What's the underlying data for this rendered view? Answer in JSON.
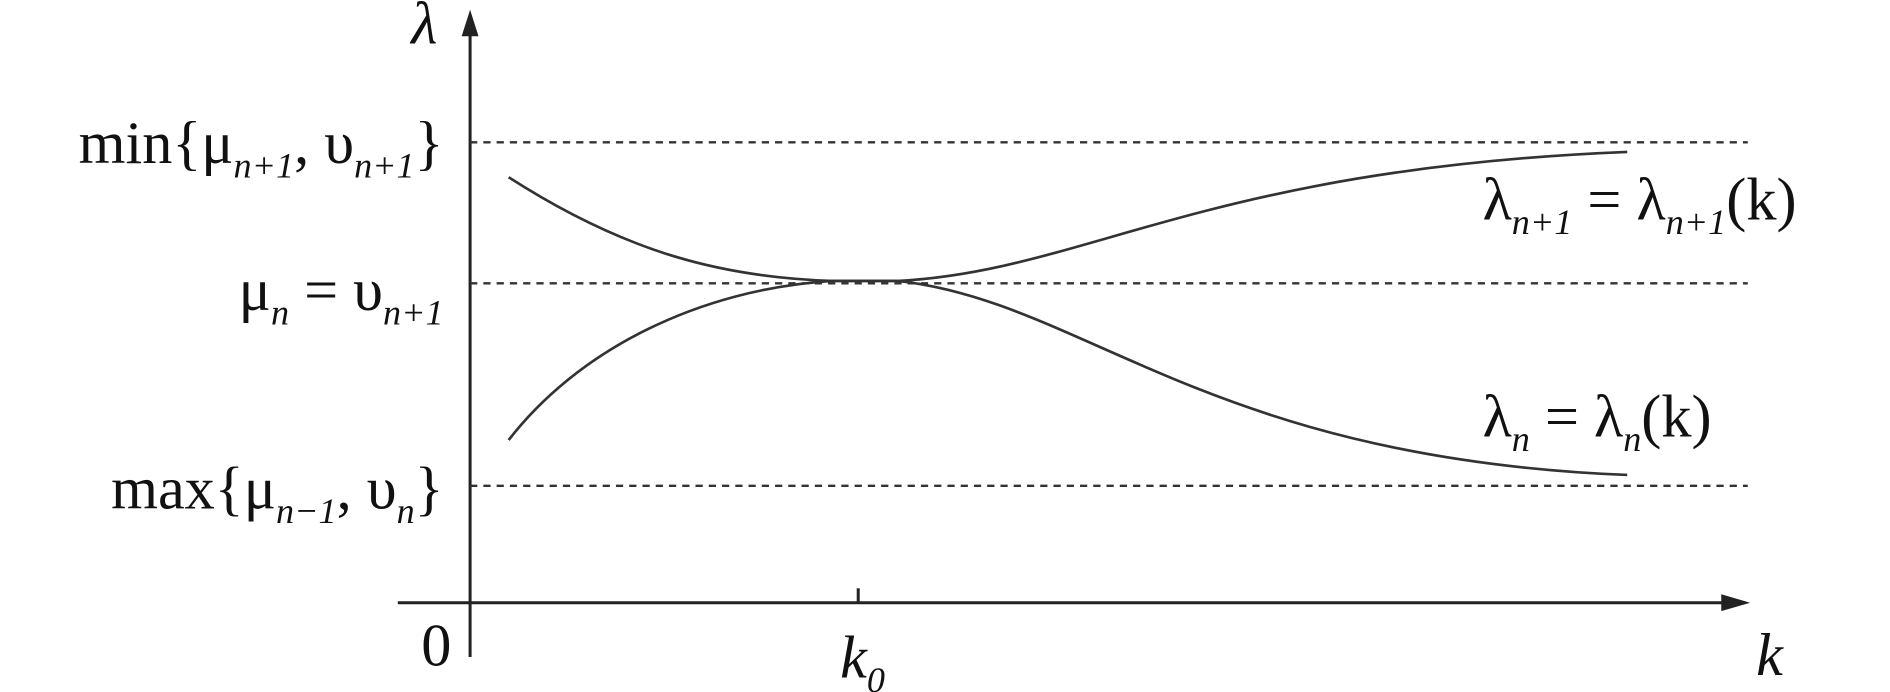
{
  "axes": {
    "y_label": "λ",
    "x_label": "k",
    "origin": "0",
    "tick_label": [
      "k",
      "0"
    ]
  },
  "levels": [
    {
      "label": [
        "min{μ",
        "n+1",
        ", υ",
        "n+1",
        "}"
      ]
    },
    {
      "label": [
        "μ",
        "n",
        " = υ",
        "n+1"
      ]
    },
    {
      "label": [
        "max{μ",
        "n−1",
        ", υ",
        "n",
        "}"
      ]
    }
  ],
  "curves": [
    {
      "label": [
        "λ",
        "n+1",
        " = λ",
        "n+1",
        "(k)"
      ]
    },
    {
      "label": [
        "λ",
        "n",
        " = λ",
        "n",
        "(k)"
      ]
    }
  ]
}
